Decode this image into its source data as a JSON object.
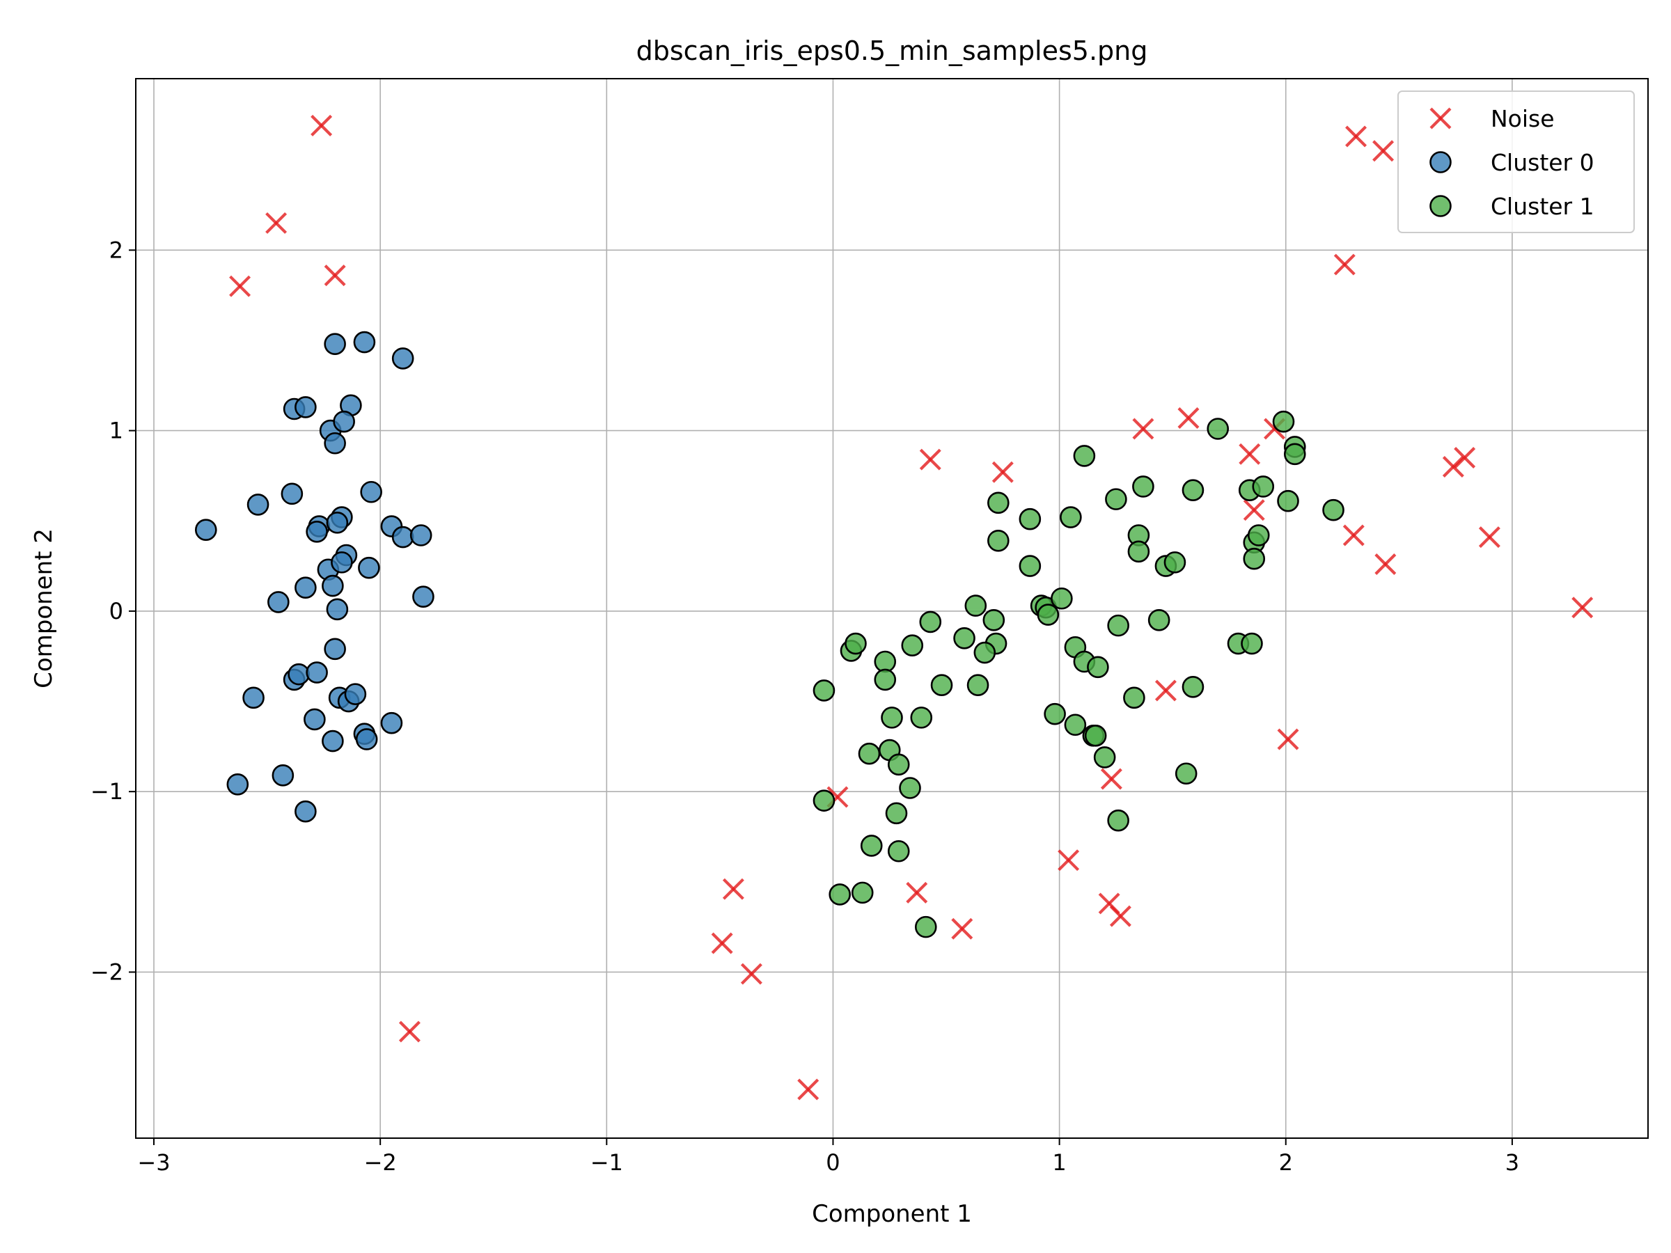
{
  "chart_data": {
    "type": "scatter",
    "title": "dbscan_iris_eps0.5_min_samples5.png",
    "xlabel": "Component 1",
    "ylabel": "Component 2",
    "xlim": [
      -3.08,
      3.6
    ],
    "ylim": [
      -2.92,
      2.95
    ],
    "xticks": [
      -3,
      -2,
      -1,
      0,
      1,
      2,
      3
    ],
    "xtick_labels": [
      "−3",
      "−2",
      "−1",
      "0",
      "1",
      "2",
      "3"
    ],
    "yticks": [
      -2,
      -1,
      0,
      1,
      2
    ],
    "ytick_labels": [
      "−2",
      "−1",
      "0",
      "1",
      "2"
    ],
    "grid": true,
    "legend_position": "top-right",
    "series": [
      {
        "name": "Noise",
        "marker": "x",
        "color": "#e31a1c",
        "points": [
          [
            -2.26,
            2.69
          ],
          [
            -2.46,
            2.15
          ],
          [
            -2.62,
            1.8
          ],
          [
            -2.2,
            1.86
          ],
          [
            -1.87,
            -2.33
          ],
          [
            0.43,
            0.84
          ],
          [
            0.75,
            0.77
          ],
          [
            1.37,
            1.01
          ],
          [
            1.57,
            1.07
          ],
          [
            1.84,
            0.87
          ],
          [
            1.95,
            1.01
          ],
          [
            1.86,
            0.56
          ],
          [
            2.31,
            2.63
          ],
          [
            2.43,
            2.55
          ],
          [
            2.26,
            1.92
          ],
          [
            2.74,
            0.8
          ],
          [
            2.79,
            0.85
          ],
          [
            2.3,
            0.42
          ],
          [
            2.44,
            0.26
          ],
          [
            2.9,
            0.41
          ],
          [
            3.31,
            0.02
          ],
          [
            1.47,
            -0.44
          ],
          [
            2.01,
            -0.71
          ],
          [
            1.23,
            -0.93
          ],
          [
            0.02,
            -1.03
          ],
          [
            1.04,
            -1.38
          ],
          [
            1.22,
            -1.62
          ],
          [
            1.27,
            -1.69
          ],
          [
            -0.44,
            -1.54
          ],
          [
            -0.49,
            -1.84
          ],
          [
            -0.36,
            -2.01
          ],
          [
            -0.11,
            -2.65
          ],
          [
            0.37,
            -1.56
          ],
          [
            0.57,
            -1.76
          ]
        ]
      },
      {
        "name": "Cluster 0",
        "marker": "o",
        "color": "#377eb8",
        "points": [
          [
            -2.2,
            1.48
          ],
          [
            -2.07,
            1.49
          ],
          [
            -1.9,
            1.4
          ],
          [
            -2.38,
            1.12
          ],
          [
            -2.33,
            1.13
          ],
          [
            -2.13,
            1.14
          ],
          [
            -2.22,
            1.0
          ],
          [
            -2.16,
            1.05
          ],
          [
            -2.2,
            0.93
          ],
          [
            -2.04,
            0.66
          ],
          [
            -2.77,
            0.45
          ],
          [
            -2.54,
            0.59
          ],
          [
            -2.39,
            0.65
          ],
          [
            -2.27,
            0.47
          ],
          [
            -2.17,
            0.52
          ],
          [
            -2.19,
            0.49
          ],
          [
            -2.28,
            0.44
          ],
          [
            -1.95,
            0.47
          ],
          [
            -1.9,
            0.41
          ],
          [
            -1.82,
            0.42
          ],
          [
            -2.23,
            0.23
          ],
          [
            -2.15,
            0.31
          ],
          [
            -2.17,
            0.27
          ],
          [
            -2.05,
            0.24
          ],
          [
            -2.45,
            0.05
          ],
          [
            -2.33,
            0.13
          ],
          [
            -2.21,
            0.14
          ],
          [
            -2.19,
            0.01
          ],
          [
            -1.81,
            0.08
          ],
          [
            -2.2,
            -0.21
          ],
          [
            -2.38,
            -0.38
          ],
          [
            -2.36,
            -0.35
          ],
          [
            -2.28,
            -0.34
          ],
          [
            -2.56,
            -0.48
          ],
          [
            -2.18,
            -0.48
          ],
          [
            -2.14,
            -0.5
          ],
          [
            -2.11,
            -0.46
          ],
          [
            -2.29,
            -0.6
          ],
          [
            -2.21,
            -0.72
          ],
          [
            -2.07,
            -0.68
          ],
          [
            -2.06,
            -0.71
          ],
          [
            -1.95,
            -0.62
          ],
          [
            -2.63,
            -0.96
          ],
          [
            -2.43,
            -0.91
          ],
          [
            -2.33,
            -1.11
          ]
        ]
      },
      {
        "name": "Cluster 1",
        "marker": "o",
        "color": "#4daf4a",
        "points": [
          [
            1.99,
            1.05
          ],
          [
            2.04,
            0.91
          ],
          [
            2.04,
            0.87
          ],
          [
            1.7,
            1.01
          ],
          [
            1.11,
            0.86
          ],
          [
            0.73,
            0.6
          ],
          [
            0.87,
            0.51
          ],
          [
            0.73,
            0.39
          ],
          [
            1.05,
            0.52
          ],
          [
            1.25,
            0.62
          ],
          [
            1.37,
            0.69
          ],
          [
            1.59,
            0.67
          ],
          [
            1.84,
            0.67
          ],
          [
            1.9,
            0.69
          ],
          [
            2.01,
            0.61
          ],
          [
            2.21,
            0.56
          ],
          [
            1.35,
            0.42
          ],
          [
            1.35,
            0.33
          ],
          [
            1.47,
            0.25
          ],
          [
            1.51,
            0.27
          ],
          [
            1.86,
            0.38
          ],
          [
            1.88,
            0.42
          ],
          [
            1.86,
            0.29
          ],
          [
            0.87,
            0.25
          ],
          [
            0.92,
            0.03
          ],
          [
            0.94,
            0.02
          ],
          [
            0.95,
            -0.02
          ],
          [
            1.01,
            0.07
          ],
          [
            0.63,
            0.03
          ],
          [
            0.71,
            -0.05
          ],
          [
            0.43,
            -0.06
          ],
          [
            0.58,
            -0.15
          ],
          [
            0.72,
            -0.18
          ],
          [
            0.67,
            -0.23
          ],
          [
            0.35,
            -0.19
          ],
          [
            0.08,
            -0.22
          ],
          [
            0.1,
            -0.18
          ],
          [
            0.23,
            -0.28
          ],
          [
            0.23,
            -0.38
          ],
          [
            1.07,
            -0.2
          ],
          [
            1.11,
            -0.28
          ],
          [
            1.17,
            -0.31
          ],
          [
            1.26,
            -0.08
          ],
          [
            1.44,
            -0.05
          ],
          [
            1.79,
            -0.18
          ],
          [
            1.85,
            -0.18
          ],
          [
            -0.04,
            -0.44
          ],
          [
            0.48,
            -0.41
          ],
          [
            0.64,
            -0.41
          ],
          [
            1.33,
            -0.48
          ],
          [
            1.59,
            -0.42
          ],
          [
            0.26,
            -0.59
          ],
          [
            0.39,
            -0.59
          ],
          [
            0.98,
            -0.57
          ],
          [
            1.07,
            -0.63
          ],
          [
            1.15,
            -0.69
          ],
          [
            1.16,
            -0.69
          ],
          [
            1.2,
            -0.81
          ],
          [
            0.16,
            -0.79
          ],
          [
            0.25,
            -0.77
          ],
          [
            0.29,
            -0.85
          ],
          [
            0.34,
            -0.98
          ],
          [
            1.56,
            -0.9
          ],
          [
            -0.04,
            -1.05
          ],
          [
            0.28,
            -1.12
          ],
          [
            1.26,
            -1.16
          ],
          [
            0.17,
            -1.3
          ],
          [
            0.29,
            -1.33
          ],
          [
            0.03,
            -1.57
          ],
          [
            0.13,
            -1.56
          ],
          [
            0.41,
            -1.75
          ]
        ]
      }
    ]
  }
}
